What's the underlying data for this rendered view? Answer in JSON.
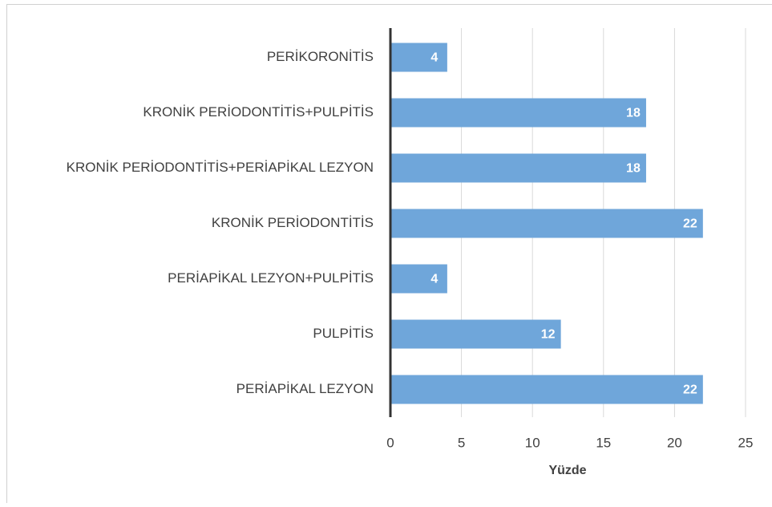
{
  "chart_data": {
    "type": "bar",
    "orientation": "horizontal",
    "categories": [
      "PERİKORONİTİS",
      "KRONİK PERİODONTİTİS+PULPİTİS",
      "KRONİK PERİODONTİTİS+PERİAPİKAL LEZYON",
      "KRONİK PERİODONTİTİS",
      "PERİAPİKAL LEZYON+PULPİTİS",
      "PULPİTİS",
      "PERİAPİKAL LEZYON"
    ],
    "values": [
      4,
      18,
      18,
      22,
      4,
      12,
      22
    ],
    "color": "#6fa6da",
    "x_label": "Yüzde",
    "xlim": [
      0,
      25
    ],
    "xticks": [
      0,
      5,
      10,
      15,
      20,
      25
    ],
    "grid": true
  }
}
